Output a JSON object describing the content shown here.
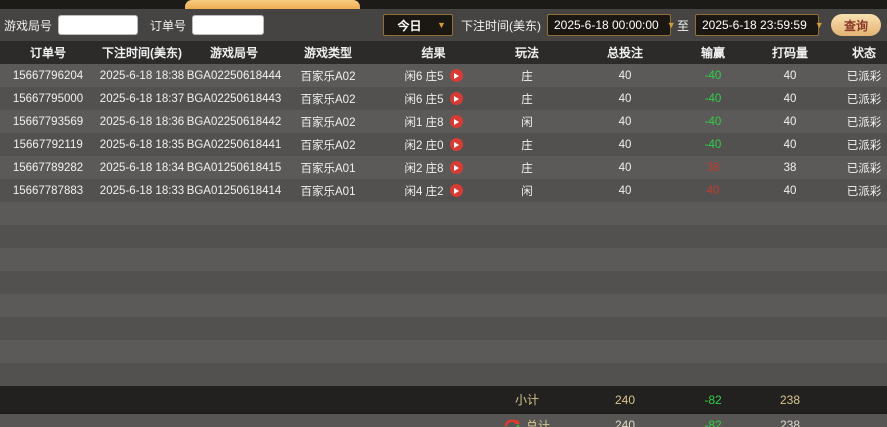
{
  "filter_bar": {
    "game_round_label": "游戏局号",
    "order_no_label": "订单号",
    "range_select_value": "今日",
    "bet_time_label": "下注时间(美东)",
    "start_time": "2025-6-18 00:00:00",
    "to_label": "至",
    "end_time": "2025-6-18 23:59:59",
    "query_button": "查询",
    "caret": "▼"
  },
  "table": {
    "columns": [
      "订单号",
      "下注时间(美东)",
      "游戏局号",
      "游戏类型",
      "结果",
      "玩法",
      "总投注",
      "输赢",
      "打码量",
      "状态"
    ],
    "rows": [
      {
        "order_no": "15667796204",
        "bet_time": "2025-6-18 18:38",
        "round": "BGA02250618444",
        "game_type": "百家乐A02",
        "result": "闲6 庄5",
        "play": "庄",
        "total_bet": "40",
        "win_loss": "-40",
        "win_loss_color": "green",
        "turnover": "40",
        "status": "已派彩"
      },
      {
        "order_no": "15667795000",
        "bet_time": "2025-6-18 18:37",
        "round": "BGA02250618443",
        "game_type": "百家乐A02",
        "result": "闲6 庄5",
        "play": "庄",
        "total_bet": "40",
        "win_loss": "-40",
        "win_loss_color": "green",
        "turnover": "40",
        "status": "已派彩"
      },
      {
        "order_no": "15667793569",
        "bet_time": "2025-6-18 18:36",
        "round": "BGA02250618442",
        "game_type": "百家乐A02",
        "result": "闲1 庄8",
        "play": "闲",
        "total_bet": "40",
        "win_loss": "-40",
        "win_loss_color": "green",
        "turnover": "40",
        "status": "已派彩"
      },
      {
        "order_no": "15667792119",
        "bet_time": "2025-6-18 18:35",
        "round": "BGA02250618441",
        "game_type": "百家乐A02",
        "result": "闲2 庄0",
        "play": "庄",
        "total_bet": "40",
        "win_loss": "-40",
        "win_loss_color": "green",
        "turnover": "40",
        "status": "已派彩"
      },
      {
        "order_no": "15667789282",
        "bet_time": "2025-6-18 18:34",
        "round": "BGA01250618415",
        "game_type": "百家乐A01",
        "result": "闲2 庄8",
        "play": "庄",
        "total_bet": "40",
        "win_loss": "38",
        "win_loss_color": "red",
        "turnover": "38",
        "status": "已派彩"
      },
      {
        "order_no": "15667787883",
        "bet_time": "2025-6-18 18:33",
        "round": "BGA01250618414",
        "game_type": "百家乐A01",
        "result": "闲4 庄2",
        "play": "闲",
        "total_bet": "40",
        "win_loss": "40",
        "win_loss_color": "red",
        "turnover": "40",
        "status": "已派彩"
      }
    ],
    "subtotal": {
      "label": "小计",
      "total_bet": "240",
      "win_loss": "-82",
      "turnover": "238"
    },
    "grand_total": {
      "label": "总计",
      "total_bet": "240",
      "win_loss": "-82",
      "turnover": "238"
    }
  },
  "colors": {
    "green": "#2ed146",
    "red": "#bf3b2f",
    "accent_gold": "#f2ba60",
    "summary_tan": "#d6c68c"
  }
}
